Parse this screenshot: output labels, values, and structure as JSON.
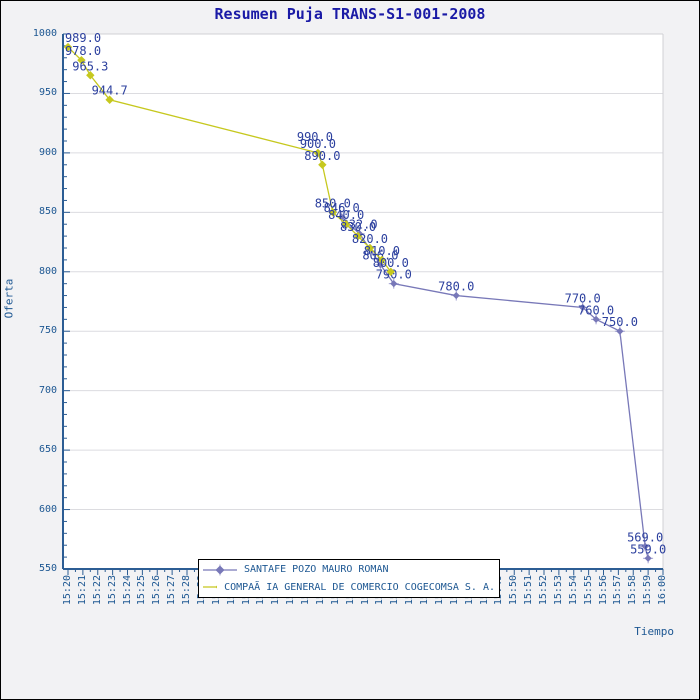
{
  "title": "Resumen Puja TRANS-S1-001-2008",
  "y_axis": {
    "label": "Oferta",
    "ticks": [
      1000,
      950,
      900,
      850,
      800,
      750,
      700,
      650,
      600,
      550
    ]
  },
  "x_axis": {
    "label": "Tiempo",
    "ticks": [
      "15:20",
      "15:21",
      "15:22",
      "15:23",
      "15:24",
      "15:25",
      "15:26",
      "15:27",
      "15:28",
      "15:29",
      "15:30",
      "15:31",
      "15:32",
      "15:33",
      "15:34",
      "15:35",
      "15:36",
      "15:37",
      "15:38",
      "15:39",
      "15:40",
      "15:41",
      "15:42",
      "15:43",
      "15:44",
      "15:45",
      "15:46",
      "15:47",
      "15:48",
      "15:49",
      "15:50",
      "15:51",
      "15:52",
      "15:53",
      "15:54",
      "15:55",
      "15:56",
      "15:57",
      "15:58",
      "15:59",
      "16:00"
    ]
  },
  "legend": [
    {
      "label": "SANTAFE POZO MAURO ROMAN",
      "series": "santafe"
    },
    {
      "label": "COMPAÃ IA GENERAL DE COMERCIO COGECOMSA S. A.",
      "series": "cogecomsa"
    }
  ],
  "chart_data": {
    "type": "line",
    "title": "Resumen Puja TRANS-S1-001-2008",
    "xlabel": "Tiempo",
    "ylabel": "Oferta",
    "ylim": [
      550,
      1000
    ],
    "x_unit": "minutes after 15:20",
    "xlim_minutes": [
      0,
      40
    ],
    "grid": "horizontal",
    "legend_position": "bottom-inside",
    "series": [
      {
        "name": "SANTAFE POZO MAURO ROMAN",
        "color_key": "series_blue",
        "marker": "diamond-cross",
        "points": [
          {
            "t": 18.4,
            "v": 846.0
          },
          {
            "t": 19.6,
            "v": 832.0
          },
          {
            "t": 21.0,
            "v": 806.0
          },
          {
            "t": 21.9,
            "v": 790.0
          },
          {
            "t": 26.1,
            "v": 780.0
          },
          {
            "t": 34.6,
            "v": 770.0
          },
          {
            "t": 35.5,
            "v": 760.0
          },
          {
            "t": 37.1,
            "v": 750.0
          },
          {
            "t": 38.8,
            "v": 569.0
          },
          {
            "t": 39.0,
            "v": 559.0
          }
        ]
      },
      {
        "name": "COMPAÃ IA GENERAL DE COMERCIO COGECOMSA S. A.",
        "color_key": "series_yellow",
        "marker": "diamond",
        "points": [
          {
            "t": 0.0,
            "v": 989.0
          },
          {
            "t": 0.9,
            "v": 978.0
          },
          {
            "t": 1.5,
            "v": 965.3
          },
          {
            "t": 2.8,
            "v": 944.7
          },
          {
            "t": 16.8,
            "v": 900.0
          },
          {
            "t": 17.1,
            "v": 890.0
          },
          {
            "t": 17.8,
            "v": 850.0
          },
          {
            "t": 18.7,
            "v": 840.0
          },
          {
            "t": 19.5,
            "v": 830.0
          },
          {
            "t": 20.3,
            "v": 820.0
          },
          {
            "t": 21.1,
            "v": 810.0
          },
          {
            "t": 21.7,
            "v": 800.0
          }
        ]
      }
    ],
    "extra_labels": [
      {
        "text": "990.0",
        "t": 16.6,
        "v": 906.0
      }
    ]
  },
  "colors": {
    "background": "#f2f2f4",
    "plot_background": "#ffffff",
    "grid": "#dcdce0",
    "frame": "#d0d0d4",
    "axis": "#2c5d94",
    "tick_text": "#1d5792",
    "data_label_text": "#2b3f9e",
    "title_text": "#1a1aa6",
    "series_blue": "#7878b8",
    "series_blue_light": "#9f9fd0",
    "series_yellow": "#c6c81e"
  }
}
